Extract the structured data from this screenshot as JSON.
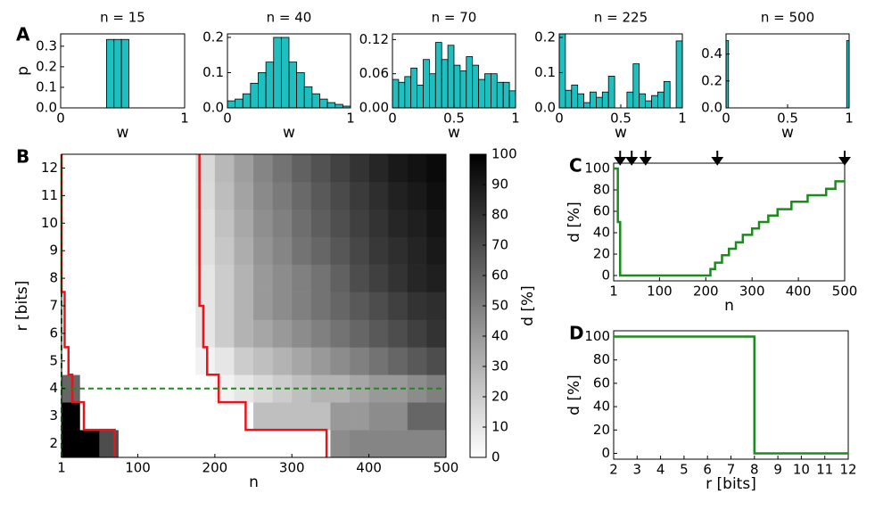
{
  "chart_data": [
    {
      "type": "histogram",
      "panel": "A",
      "title": "n = 15",
      "xlabel": "w",
      "ylabel": "p",
      "color": "#1fbfbf",
      "bins": [
        0.37,
        0.43,
        0.49,
        0.55
      ],
      "values": [
        0.333,
        0.333,
        0.333
      ],
      "xlim": [
        0,
        1
      ],
      "xticks": [
        0,
        1
      ],
      "ylim": [
        0,
        0.36
      ],
      "yticks": [
        {
          "value": 0,
          "label": "0.0"
        },
        0.1,
        0.2,
        0.3
      ]
    },
    {
      "type": "histogram",
      "title": "n = 40",
      "xlabel": "w",
      "color": "#1fbfbf",
      "bins": [
        0,
        0.0625,
        0.125,
        0.1875,
        0.25,
        0.3125,
        0.375,
        0.4375,
        0.5,
        0.5625,
        0.625,
        0.6875,
        0.75,
        0.8125,
        0.875,
        0.9375,
        1
      ],
      "values": [
        0.02,
        0.025,
        0.04,
        0.07,
        0.1,
        0.13,
        0.2,
        0.2,
        0.13,
        0.1,
        0.06,
        0.04,
        0.025,
        0.015,
        0.01,
        0.005
      ],
      "xlim": [
        0,
        1
      ],
      "xticks": [
        0,
        1
      ],
      "ylim": [
        0,
        0.21
      ],
      "yticks": [
        {
          "value": 0,
          "label": "0.0"
        },
        0.1,
        0.2
      ]
    },
    {
      "type": "histogram",
      "title": "n = 70",
      "xlabel": "w",
      "color": "#1fbfbf",
      "bins": [
        0,
        0.05,
        0.1,
        0.15,
        0.2,
        0.25,
        0.3,
        0.35,
        0.4,
        0.45,
        0.5,
        0.55,
        0.6,
        0.65,
        0.7,
        0.75,
        0.8,
        0.85,
        0.9,
        0.95,
        1
      ],
      "values": [
        0.05,
        0.045,
        0.055,
        0.07,
        0.04,
        0.085,
        0.06,
        0.115,
        0.085,
        0.11,
        0.075,
        0.065,
        0.09,
        0.075,
        0.05,
        0.06,
        0.06,
        0.045,
        0.045,
        0.03
      ],
      "xlim": [
        0,
        1
      ],
      "xticks": [
        0,
        0.5,
        1
      ],
      "ylim": [
        0,
        0.13
      ],
      "yticks": [
        {
          "value": 0,
          "label": "0.00"
        },
        0.06,
        0.12
      ]
    },
    {
      "type": "histogram",
      "title": "n = 225",
      "xlabel": "w",
      "color": "#1fbfbf",
      "bins": [
        0,
        0.05,
        0.1,
        0.15,
        0.2,
        0.25,
        0.3,
        0.35,
        0.4,
        0.45,
        0.5,
        0.55,
        0.6,
        0.65,
        0.7,
        0.75,
        0.8,
        0.85,
        0.9,
        0.95,
        1
      ],
      "values": [
        0.21,
        0.05,
        0.065,
        0.04,
        0.015,
        0.045,
        0.03,
        0.045,
        0.09,
        0,
        0,
        0.045,
        0.125,
        0.04,
        0.02,
        0.035,
        0.045,
        0.075,
        0,
        0.19
      ],
      "xlim": [
        0,
        1
      ],
      "xticks": [
        0,
        0.5,
        1
      ],
      "ylim": [
        0,
        0.21
      ],
      "yticks": [
        {
          "value": 0,
          "label": "0.0"
        },
        0.1,
        0.2
      ]
    },
    {
      "type": "histogram",
      "title": "n = 500",
      "xlabel": "w",
      "color": "#1fbfbf",
      "bins": [
        0,
        0.02,
        0.98,
        1
      ],
      "values": [
        0.5,
        0,
        0.5
      ],
      "xlim": [
        0,
        1
      ],
      "xticks": [
        0,
        0.5,
        1
      ],
      "ylim": [
        0,
        0.55
      ],
      "yticks": [
        {
          "value": 0,
          "label": "0.0"
        },
        0.2,
        0.4
      ]
    },
    {
      "type": "heatmap",
      "panel": "B",
      "xlabel": "n",
      "ylabel": "r [bits]",
      "clabel": "d [%]",
      "xlim": [
        1,
        500
      ],
      "xticks": [
        1,
        100,
        200,
        300,
        400,
        500
      ],
      "ylim": [
        1.5,
        12.5
      ],
      "yticks": [
        2,
        3,
        4,
        5,
        6,
        7,
        8,
        9,
        10,
        11,
        12
      ],
      "clim": [
        0,
        100
      ],
      "cticks": [
        0,
        10,
        20,
        30,
        40,
        50,
        60,
        70,
        80,
        90,
        100
      ],
      "x_edges": [
        1,
        25,
        50,
        75,
        100,
        125,
        150,
        175,
        200,
        225,
        250,
        275,
        300,
        325,
        350,
        375,
        400,
        425,
        450,
        475,
        500
      ],
      "y_edges": [
        1.5,
        2.5,
        3.5,
        4.5,
        5.5,
        6.5,
        7.5,
        8.5,
        9.5,
        10.5,
        11.5,
        12.5
      ],
      "z": [
        [
          100,
          100,
          70,
          0,
          0,
          0,
          0,
          0,
          0,
          0,
          0,
          0,
          0,
          0,
          45,
          48,
          48,
          48,
          48,
          48
        ],
        [
          100,
          0,
          0,
          0,
          0,
          0,
          0,
          0,
          0,
          0,
          25,
          25,
          25,
          25,
          40,
          40,
          45,
          45,
          60,
          60
        ],
        [
          60,
          0,
          0,
          0,
          0,
          0,
          0,
          0,
          5,
          10,
          15,
          20,
          25,
          30,
          30,
          35,
          40,
          40,
          45,
          50
        ],
        [
          0,
          0,
          0,
          0,
          0,
          0,
          0,
          5,
          10,
          20,
          25,
          30,
          35,
          40,
          45,
          50,
          55,
          60,
          65,
          70
        ],
        [
          0,
          0,
          0,
          0,
          0,
          0,
          0,
          10,
          20,
          30,
          35,
          40,
          45,
          50,
          55,
          60,
          65,
          70,
          75,
          80
        ],
        [
          0,
          0,
          0,
          0,
          0,
          0,
          0,
          10,
          20,
          30,
          40,
          45,
          50,
          55,
          60,
          65,
          70,
          75,
          80,
          82
        ],
        [
          0,
          0,
          0,
          0,
          0,
          0,
          0,
          10,
          20,
          30,
          40,
          45,
          50,
          55,
          62,
          70,
          75,
          80,
          85,
          88
        ],
        [
          0,
          0,
          0,
          0,
          0,
          0,
          0,
          12,
          22,
          32,
          42,
          48,
          55,
          60,
          66,
          72,
          78,
          82,
          86,
          90
        ],
        [
          0,
          0,
          0,
          0,
          0,
          0,
          0,
          12,
          24,
          34,
          44,
          50,
          57,
          63,
          69,
          75,
          80,
          85,
          88,
          92
        ],
        [
          0,
          0,
          0,
          0,
          0,
          0,
          0,
          14,
          26,
          36,
          46,
          52,
          59,
          65,
          71,
          77,
          82,
          87,
          90,
          94
        ],
        [
          0,
          0,
          0,
          0,
          0,
          0,
          0,
          15,
          28,
          38,
          48,
          55,
          62,
          68,
          74,
          80,
          85,
          90,
          93,
          96
        ]
      ],
      "lines": [
        {
          "color": "#e8141a",
          "dashed": false,
          "x": [
            1,
            1,
            5,
            5,
            10,
            10,
            15,
            15,
            30,
            30,
            70,
            70
          ],
          "y": [
            12.5,
            7.5,
            7.5,
            5.5,
            5.5,
            4.5,
            4.5,
            3.5,
            3.5,
            2.5,
            2.5,
            1.5
          ]
        },
        {
          "color": "#e8141a",
          "dashed": false,
          "x": [
            180,
            180,
            185,
            185,
            190,
            190,
            205,
            205,
            240,
            240,
            345,
            345
          ],
          "y": [
            12.5,
            7,
            7,
            5.5,
            5.5,
            4.5,
            4.5,
            3.5,
            3.5,
            2.5,
            2.5,
            1.5
          ]
        },
        {
          "color": "#1e8a1e",
          "dashed": true,
          "x": [
            1,
            500
          ],
          "y": [
            4,
            4
          ]
        },
        {
          "color": "#1e8a1e",
          "dashed": true,
          "x": [
            1,
            1
          ],
          "y": [
            1.5,
            12.5
          ]
        }
      ]
    },
    {
      "type": "line",
      "panel": "C",
      "xlabel": "n",
      "ylabel": "d [%]",
      "color": "#1e8a1e",
      "drawstyle": "steps-post",
      "x": [
        1,
        10,
        15,
        200,
        210,
        220,
        235,
        250,
        265,
        280,
        300,
        315,
        335,
        355,
        385,
        420,
        460,
        480,
        500
      ],
      "values": [
        100,
        50,
        0,
        0,
        6,
        12,
        19,
        25,
        31,
        38,
        44,
        50,
        56,
        62,
        69,
        75,
        81,
        88,
        88
      ],
      "arrows": [
        15,
        40,
        70,
        225,
        500
      ],
      "xlim": [
        1,
        500
      ],
      "xticks": [
        1,
        100,
        200,
        300,
        400,
        500
      ],
      "ylim": [
        -5,
        105
      ],
      "yticks": [
        0,
        20,
        40,
        60,
        80,
        100
      ]
    },
    {
      "type": "line",
      "panel": "D",
      "xlabel": "r [bits]",
      "ylabel": "d [%]",
      "color": "#1e8a1e",
      "drawstyle": "steps-post",
      "x": [
        2,
        8,
        12
      ],
      "values": [
        100,
        0,
        0
      ],
      "xlim": [
        2,
        12
      ],
      "xticks": [
        2,
        3,
        4,
        5,
        6,
        7,
        8,
        9,
        10,
        11,
        12
      ],
      "ylim": [
        -5,
        105
      ],
      "yticks": [
        0,
        20,
        40,
        60,
        80,
        100
      ]
    }
  ]
}
